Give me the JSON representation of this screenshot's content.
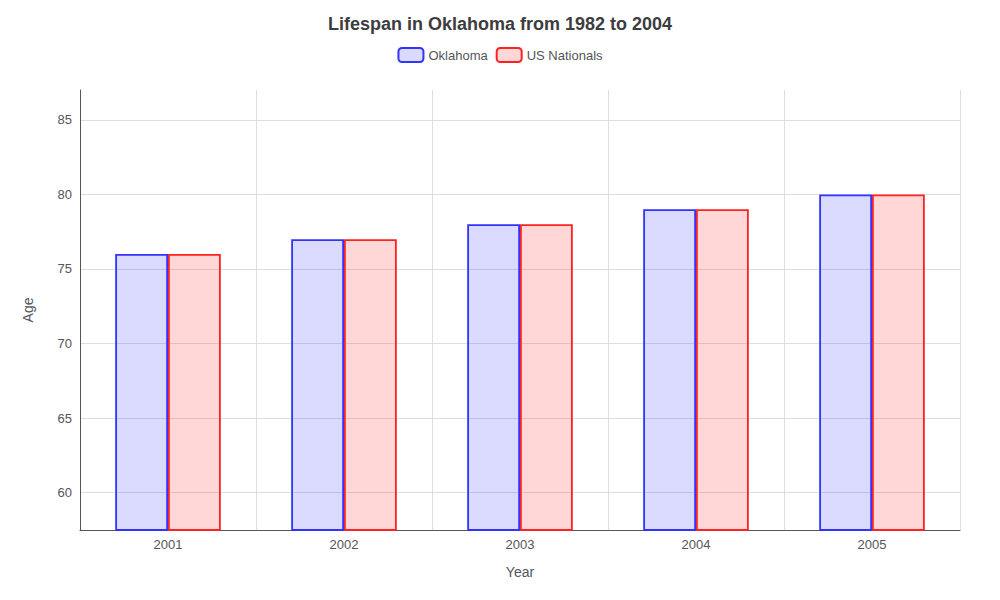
{
  "chart_data": {
    "type": "bar",
    "title": "Lifespan in Oklahoma from 1982 to 2004",
    "xlabel": "Year",
    "ylabel": "Age",
    "categories": [
      "2001",
      "2002",
      "2003",
      "2004",
      "2005"
    ],
    "series": [
      {
        "name": "Oklahoma",
        "color": "#3333ff",
        "values": [
          76,
          77,
          78,
          79,
          80
        ]
      },
      {
        "name": "US Nationals",
        "color": "#ff2222",
        "values": [
          76,
          77,
          78,
          79,
          80
        ]
      }
    ],
    "ylim": [
      57.5,
      87
    ],
    "yticks": [
      60,
      65,
      70,
      75,
      80,
      85
    ],
    "grid": true,
    "legend": "top"
  }
}
